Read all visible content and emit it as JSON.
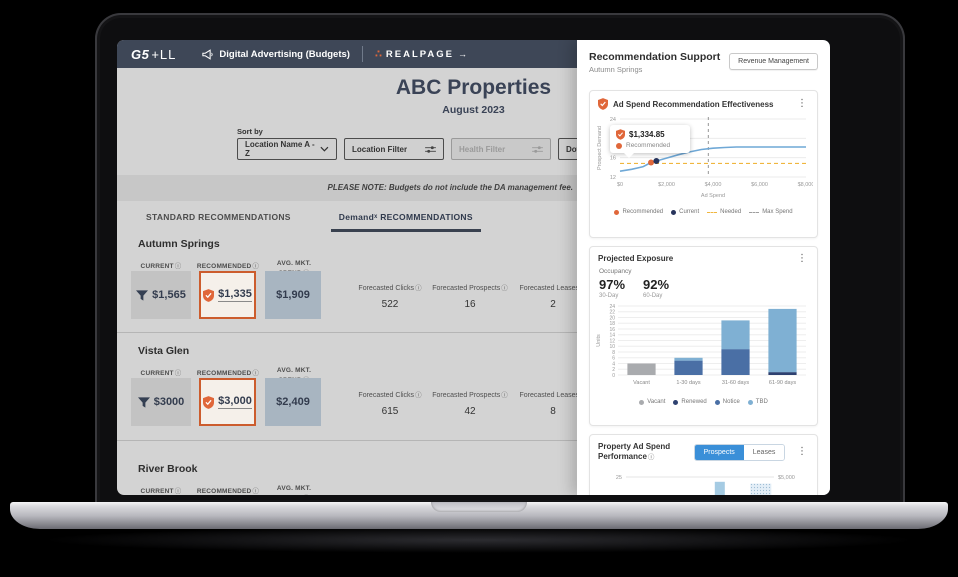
{
  "topbar": {
    "logo": "G5",
    "logo_suffix": "+LL",
    "app_label": "Digital Advertising (Budgets)",
    "brand_dots": "∴",
    "brand": "REALPAGE",
    "brand_arrow": "→"
  },
  "header": {
    "title": "ABC Properties",
    "subtitle": "August 2023"
  },
  "filters": {
    "sort_label": "Sort by",
    "sort_value": "Location Name A - Z",
    "location_filter": "Location Filter",
    "health_filter": "Health Filter",
    "download": "Download"
  },
  "note": "PLEASE NOTE: Budgets do not include the DA management fee.",
  "tabs": [
    {
      "label": "STANDARD RECOMMENDATIONS",
      "active": false
    },
    {
      "label": "Demandˣ RECOMMENDATIONS",
      "active": true
    }
  ],
  "columns": {
    "current": "CURRENT",
    "recommended": "RECOMMENDED",
    "avg_mkt_spend": "AVG. MKT. SPEND",
    "forecasted_clicks": "Forecasted Clicks",
    "forecasted_prospects": "Forecasted Prospects",
    "forecasted_leases": "Forecasted Leases"
  },
  "properties": [
    {
      "name": "Autumn Springs",
      "current": "$1,565",
      "recommended": "$1,335",
      "avg_mkt_spend": "$1,909",
      "forecasted_clicks": "522",
      "forecasted_prospects": "16",
      "forecasted_leases": "2"
    },
    {
      "name": "Vista Glen",
      "current": "$3000",
      "recommended": "$3,000",
      "avg_mkt_spend": "$2,409",
      "forecasted_clicks": "615",
      "forecasted_prospects": "42",
      "forecasted_leases": "8"
    },
    {
      "name": "River Brook"
    }
  ],
  "panel": {
    "title": "Recommendation Support",
    "subtitle": "Autumn Springs",
    "button": "Revenue Management"
  },
  "colors": {
    "accent_orange": "#d9632f",
    "navy_header": "#3e4757",
    "chart_blue": "#6fa8d6",
    "current_navy": "#27345c",
    "needed_yellow": "#f0b63e",
    "max_spend_gray": "#9e9e9e",
    "prospects_button_blue": "#3a8fd8",
    "avg_box_bluegray": "#a8b5c1"
  },
  "chart_data": [
    {
      "type": "line",
      "title": "Ad Spend Recommendation Effectiveness",
      "xlabel": "Ad Spend",
      "ylabel": "Prospect Demand",
      "xlim": [
        0,
        8000
      ],
      "ylim": [
        12,
        24
      ],
      "yticks": [
        12,
        16,
        20,
        24
      ],
      "xticks": [
        "$0",
        "$2,000",
        "$4,000",
        "$6,000",
        "$8,000"
      ],
      "series": [
        {
          "name": "Prospect demand curve",
          "color": "#6fa8d6",
          "x": [
            0,
            500,
            1000,
            1335,
            1565,
            2000,
            2500,
            3000,
            3500,
            4000,
            4500,
            5000,
            6000,
            7000,
            8000
          ],
          "y": [
            13.2,
            13.6,
            14.15,
            15.0,
            15.3,
            15.9,
            16.6,
            17.2,
            17.7,
            17.95,
            18.1,
            18.2,
            18.2,
            18.2,
            18.2
          ]
        }
      ],
      "markers": [
        {
          "name": "Recommended",
          "x": 1335,
          "y": 15.0,
          "color": "#e0673a"
        },
        {
          "name": "Current",
          "x": 1565,
          "y": 15.3,
          "color": "#27345c"
        }
      ],
      "hline": {
        "name": "Needed",
        "y": 14.8,
        "color": "#f0b63e"
      },
      "vline": {
        "name": "Max Spend",
        "x": 3800,
        "color": "#9e9e9e"
      },
      "tooltip": {
        "value": "$1,334.85",
        "label": "Recommended"
      },
      "legend": [
        {
          "label": "Recommended",
          "color": "#e0673a",
          "marker": "dot"
        },
        {
          "label": "Current",
          "color": "#27345c",
          "marker": "dot"
        },
        {
          "label": "Needed",
          "color": "#f0b63e",
          "marker": "dash"
        },
        {
          "label": "Max Spend",
          "color": "#9e9e9e",
          "marker": "dash"
        }
      ]
    },
    {
      "type": "bar",
      "title": "Projected Exposure",
      "ylabel": "Units",
      "ylim": [
        0,
        24
      ],
      "ytick_step": 2,
      "categories": [
        "Vacant",
        "1-30 days",
        "31-60 days",
        "61-90 days"
      ],
      "series": [
        {
          "name": "Vacant",
          "color": "#a9abae",
          "values": [
            4,
            0,
            0,
            0
          ]
        },
        {
          "name": "Renewed",
          "color": "#2e4170",
          "values": [
            0,
            0,
            0,
            1
          ]
        },
        {
          "name": "Notice",
          "color": "#4a6fa5",
          "values": [
            0,
            5,
            9,
            0
          ]
        },
        {
          "name": "TBD",
          "color": "#7fb0d3",
          "values": [
            0,
            1,
            10,
            22
          ]
        }
      ],
      "occupancy": {
        "label": "Occupancy",
        "stats": [
          {
            "value": "97%",
            "caption": "30-Day"
          },
          {
            "value": "92%",
            "caption": "60-Day"
          }
        ]
      }
    },
    {
      "type": "bar",
      "title": "Property Ad Spend Performance",
      "toggle": [
        {
          "label": "Prospects",
          "active": true
        },
        {
          "label": "Leases",
          "active": false
        }
      ],
      "ytick_left": "25",
      "label_right": "$5,000",
      "bars": [
        {
          "x": 0.42,
          "height": 0.15,
          "style": "solid"
        },
        {
          "x": 0.6,
          "height": 0.94,
          "style": "solid"
        },
        {
          "x": 0.84,
          "height": 0.9,
          "style": "dotted"
        }
      ]
    }
  ]
}
